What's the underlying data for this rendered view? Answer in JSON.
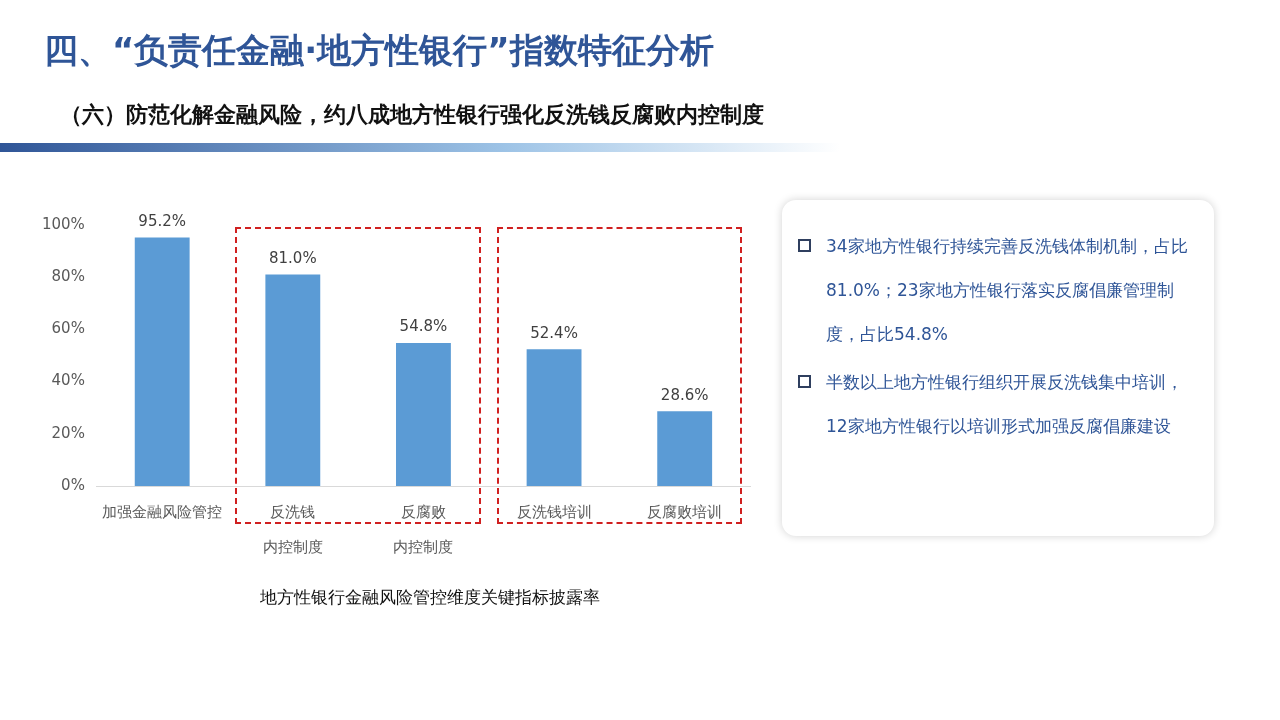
{
  "chart_data": {
    "type": "bar",
    "title": "四、“负责任金融·地方性银行”指数特征分析",
    "subtitle": "（六）防范化解金融风险，约八成地方性银行强化反洗钱反腐败内控制度",
    "xlabel": "地方性银行金融风险管控维度关键指标披露率",
    "categories": [
      "加强金融风险管控",
      "反洗钱内控制度",
      "反腐败内控制度",
      "反洗钱培训",
      "反腐败培训"
    ],
    "values": [
      95.2,
      81.0,
      54.8,
      52.4,
      28.6
    ],
    "value_labels": [
      "95.2%",
      "81.0%",
      "54.8%",
      "52.4%",
      "28.6%"
    ],
    "color": "#5b9bd5",
    "ylim": [
      0,
      100
    ],
    "yticks": [
      {
        "value": 0,
        "label": "0%"
      },
      {
        "value": 20,
        "label": "20%"
      },
      {
        "value": 40,
        "label": "40%"
      },
      {
        "value": 60,
        "label": "60%"
      },
      {
        "value": 80,
        "label": "80%"
      },
      {
        "value": 100,
        "label": "100%"
      }
    ],
    "grid": false,
    "legend": false,
    "annotations": [
      "34家地方性银行持续完善反洗钱体制机制，占比81.0%；23家地方性银行落实反腐倡廉管理制度，占比54.8%",
      "半数以上地方性银行组织开展反洗钱集中培训，12家地方性银行以培训形式加强反腐倡廉建设"
    ]
  }
}
